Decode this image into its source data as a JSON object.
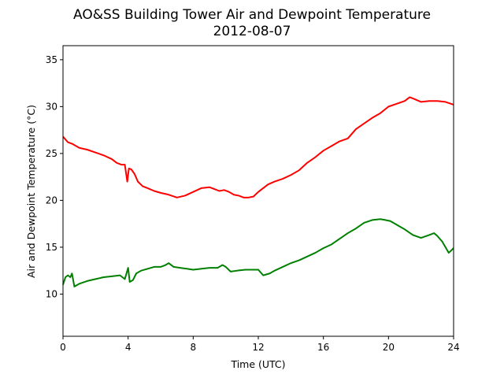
{
  "chart_data": {
    "type": "line",
    "title": "AO&SS Building Tower Air and Dewpoint Temperature",
    "subtitle": "2012-08-07",
    "xlabel": "Time (UTC)",
    "ylabel": "Air and Dewpoint Temperature (°C)",
    "xlim": [
      0,
      24
    ],
    "ylim": [
      5.5,
      36.5
    ],
    "xticks": [
      "0",
      "4",
      "8",
      "12",
      "16",
      "20",
      "24"
    ],
    "yticks": [
      "10",
      "15",
      "20",
      "25",
      "30",
      "35"
    ],
    "grid": false,
    "series": [
      {
        "color": "#ff0000",
        "x": [
          0,
          0.3,
          0.6,
          1.0,
          1.5,
          2.0,
          2.5,
          3.0,
          3.3,
          3.6,
          3.8,
          3.95,
          4.05,
          4.2,
          4.4,
          4.6,
          4.9,
          5.2,
          5.6,
          6.0,
          6.5,
          7.0,
          7.5,
          8.0,
          8.5,
          9.0,
          9.3,
          9.6,
          9.9,
          10.2,
          10.5,
          10.8,
          11.1,
          11.4,
          11.7,
          12.0,
          12.3,
          12.6,
          13.0,
          13.5,
          14.0,
          14.5,
          15.0,
          15.5,
          16.0,
          16.5,
          17.0,
          17.5,
          18.0,
          18.5,
          19.0,
          19.5,
          20.0,
          20.5,
          21.0,
          21.3,
          21.6,
          22.0,
          22.5,
          23.0,
          23.5,
          24.0
        ],
        "values": [
          26.8,
          26.2,
          26.0,
          25.6,
          25.4,
          25.1,
          24.8,
          24.4,
          24.0,
          23.8,
          23.8,
          22.0,
          23.4,
          23.3,
          22.8,
          22.0,
          21.5,
          21.3,
          21.0,
          20.8,
          20.6,
          20.3,
          20.5,
          20.9,
          21.3,
          21.4,
          21.2,
          21.0,
          21.1,
          20.9,
          20.6,
          20.5,
          20.3,
          20.3,
          20.4,
          20.9,
          21.3,
          21.7,
          22.0,
          22.3,
          22.7,
          23.2,
          24.0,
          24.6,
          25.3,
          25.8,
          26.3,
          26.6,
          27.6,
          28.2,
          28.8,
          29.3,
          30.0,
          30.3,
          30.6,
          31.0,
          30.8,
          30.5,
          30.6,
          30.6,
          30.5,
          30.2
        ]
      },
      {
        "color": "#008000",
        "x": [
          0,
          0.15,
          0.3,
          0.45,
          0.55,
          0.7,
          1.0,
          1.5,
          2.0,
          2.5,
          3.0,
          3.5,
          3.8,
          4.0,
          4.1,
          4.3,
          4.5,
          4.8,
          5.2,
          5.6,
          6.0,
          6.3,
          6.5,
          6.8,
          7.2,
          7.6,
          8.0,
          8.5,
          9.0,
          9.5,
          9.8,
          10.0,
          10.3,
          10.7,
          11.2,
          11.6,
          12.0,
          12.3,
          12.7,
          13.0,
          13.5,
          14.0,
          14.5,
          15.0,
          15.5,
          16.0,
          16.5,
          17.0,
          17.5,
          18.0,
          18.5,
          19.0,
          19.5,
          19.8,
          20.1,
          20.4,
          20.7,
          21.0,
          21.5,
          22.0,
          22.5,
          22.8,
          23.0,
          23.3,
          23.5,
          23.7,
          24.0
        ],
        "values": [
          11.0,
          11.8,
          12.0,
          11.8,
          12.2,
          10.8,
          11.1,
          11.4,
          11.6,
          11.8,
          11.9,
          12.0,
          11.6,
          12.8,
          11.3,
          11.5,
          12.2,
          12.5,
          12.7,
          12.9,
          12.9,
          13.1,
          13.3,
          12.9,
          12.8,
          12.7,
          12.6,
          12.7,
          12.8,
          12.8,
          13.1,
          12.9,
          12.4,
          12.5,
          12.6,
          12.6,
          12.6,
          12.0,
          12.2,
          12.5,
          12.9,
          13.3,
          13.6,
          14.0,
          14.4,
          14.9,
          15.3,
          15.9,
          16.5,
          17.0,
          17.6,
          17.9,
          18.0,
          17.9,
          17.8,
          17.5,
          17.2,
          16.9,
          16.3,
          16.0,
          16.3,
          16.5,
          16.2,
          15.6,
          15.0,
          14.4,
          14.9
        ]
      }
    ]
  }
}
